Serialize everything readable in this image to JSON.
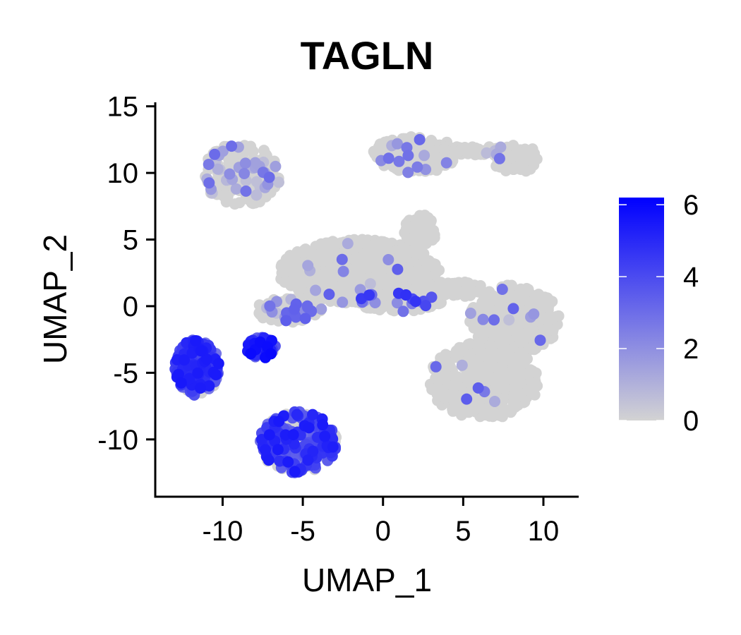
{
  "chart_data": {
    "type": "scatter",
    "title": "TAGLN",
    "xlabel": "UMAP_1",
    "ylabel": "UMAP_2",
    "xlim": [
      -14.2,
      12.2
    ],
    "ylim": [
      -14.3,
      15.3
    ],
    "xticks": [
      -10,
      -5,
      0,
      5,
      10
    ],
    "xtick_labels": [
      "-10",
      "-5",
      "0",
      "5",
      "10"
    ],
    "yticks": [
      -10,
      -5,
      0,
      5,
      10,
      15
    ],
    "ytick_labels": [
      "-10",
      "-5",
      "0",
      "5",
      "10",
      "15"
    ],
    "grid": false,
    "legend": {
      "position": "right",
      "kind": "colorbar",
      "range": [
        0,
        6.2
      ],
      "ticks": [
        0,
        2,
        4,
        6
      ],
      "tick_labels": [
        "0",
        "2",
        "4",
        "6"
      ],
      "low_color": "#d3d3d3",
      "high_color": "#0000ff"
    },
    "clusters": [
      {
        "label": "top-left",
        "cx": -8.8,
        "cy": 9.9,
        "rx": 2.4,
        "ry": 2.4,
        "n": 190,
        "expr_frac": 0.18,
        "expr_mean": 1.6
      },
      {
        "label": "top-right-left",
        "cx": 2.0,
        "cy": 11.4,
        "rx": 2.6,
        "ry": 1.4,
        "n": 170,
        "expr_frac": 0.06,
        "expr_mean": 2.5
      },
      {
        "label": "top-right-bridge",
        "cx": 5.5,
        "cy": 11.7,
        "rx": 1.7,
        "ry": 0.35,
        "n": 50,
        "expr_frac": 0.02,
        "expr_mean": 2.0
      },
      {
        "label": "top-right-right",
        "cx": 8.2,
        "cy": 11.1,
        "rx": 1.5,
        "ry": 1.1,
        "n": 60,
        "expr_frac": 0.08,
        "expr_mean": 2.5
      },
      {
        "label": "center-main",
        "cx": -1.5,
        "cy": 2.6,
        "rx": 5.0,
        "ry": 2.4,
        "n": 620,
        "expr_frac": 0.03,
        "expr_mean": 2.0
      },
      {
        "label": "center-upper",
        "cx": 2.3,
        "cy": 5.6,
        "rx": 1.0,
        "ry": 1.3,
        "n": 55,
        "expr_frac": 0.03,
        "expr_mean": 3.0
      },
      {
        "label": "center-band",
        "cx": 1.0,
        "cy": 0.4,
        "rx": 2.7,
        "ry": 0.8,
        "n": 180,
        "expr_frac": 0.1,
        "expr_mean": 3.5
      },
      {
        "label": "left-arm",
        "cx": -5.9,
        "cy": -0.3,
        "rx": 2.1,
        "ry": 0.9,
        "n": 110,
        "expr_frac": 0.14,
        "expr_mean": 2.0
      },
      {
        "label": "center-right-arm",
        "cx": 4.6,
        "cy": 1.3,
        "rx": 1.8,
        "ry": 0.6,
        "n": 80,
        "expr_frac": 0.03,
        "expr_mean": 2.0
      },
      {
        "label": "small-left",
        "cx": -7.6,
        "cy": -3.1,
        "rx": 0.9,
        "ry": 0.8,
        "n": 75,
        "expr_frac": 0.85,
        "expr_mean": 4.5
      },
      {
        "label": "far-left",
        "cx": -11.6,
        "cy": -4.6,
        "rx": 1.4,
        "ry": 2.1,
        "n": 210,
        "expr_frac": 0.75,
        "expr_mean": 4.0
      },
      {
        "label": "bottom",
        "cx": -5.3,
        "cy": -10.2,
        "rx": 2.4,
        "ry": 2.3,
        "n": 290,
        "expr_frac": 0.62,
        "expr_mean": 4.0
      },
      {
        "label": "right-upper",
        "cx": 8.2,
        "cy": -1.0,
        "rx": 2.8,
        "ry": 2.6,
        "n": 330,
        "expr_frac": 0.02,
        "expr_mean": 2.0
      },
      {
        "label": "right-lower",
        "cx": 6.3,
        "cy": -5.6,
        "rx": 3.4,
        "ry": 2.9,
        "n": 400,
        "expr_frac": 0.01,
        "expr_mean": 2.0
      }
    ]
  }
}
